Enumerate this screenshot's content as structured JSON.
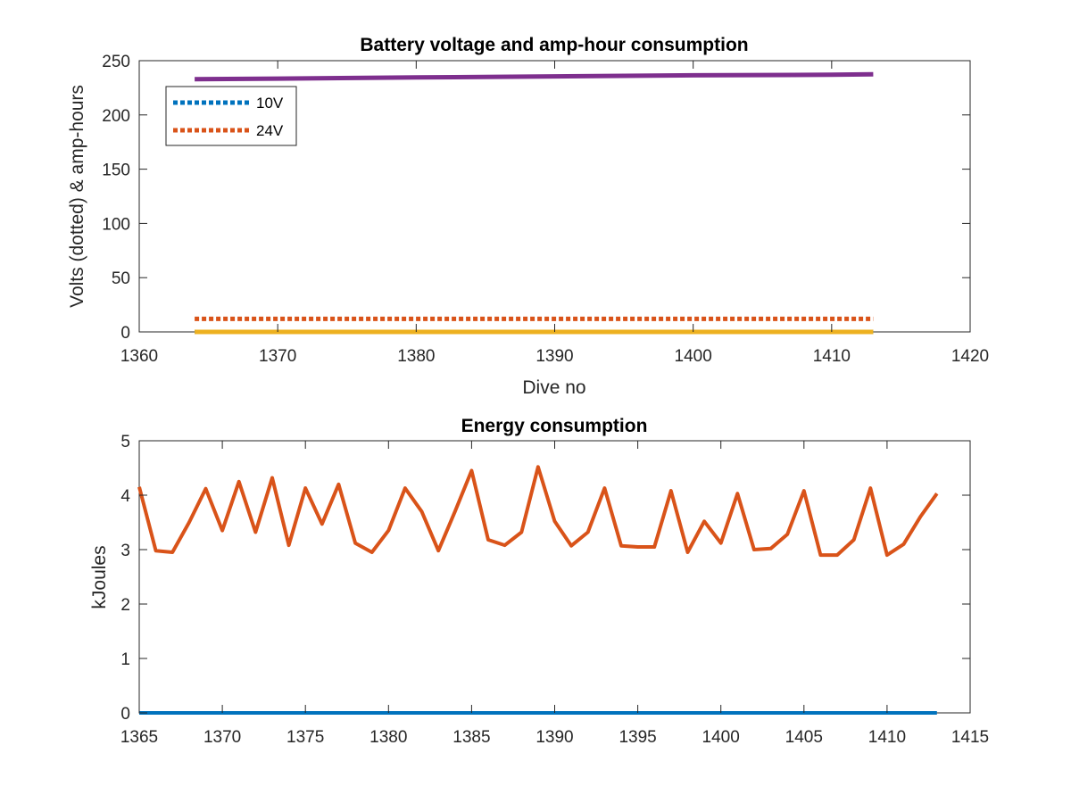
{
  "chart_data": [
    {
      "type": "line",
      "title": "Battery voltage and amp-hour consumption",
      "xlabel": "Dive no",
      "ylabel": "Volts (dotted) & amp-hours",
      "xlim": [
        1360,
        1420
      ],
      "ylim": [
        0,
        250
      ],
      "xticks": [
        1360,
        1370,
        1380,
        1390,
        1400,
        1410,
        1420
      ],
      "yticks": [
        0,
        50,
        100,
        150,
        200,
        250
      ],
      "legend": {
        "placement": "top-left",
        "entries": [
          "10V",
          "24V"
        ]
      },
      "grid": false,
      "series": [
        {
          "name": "10V",
          "style": "dotted",
          "color": "#0072BD",
          "x": [
            1364,
            1413
          ],
          "y": [
            0,
            0
          ]
        },
        {
          "name": "24V",
          "style": "dotted",
          "color": "#D95319",
          "x": [
            1364,
            1413
          ],
          "y": [
            12,
            12
          ]
        },
        {
          "name": "",
          "style": "solid",
          "color": "#EDB120",
          "x": [
            1364,
            1413
          ],
          "y": [
            0,
            0
          ]
        },
        {
          "name": "",
          "style": "solid",
          "color": "#7E2F8E",
          "x": [
            1364,
            1370,
            1380,
            1390,
            1400,
            1410,
            1413
          ],
          "y": [
            233,
            233.5,
            234.5,
            235.5,
            236.5,
            237,
            237.5
          ]
        }
      ]
    },
    {
      "type": "line",
      "title": "Energy consumption",
      "xlabel": "",
      "ylabel": "kJoules",
      "xlim": [
        1365,
        1415
      ],
      "ylim": [
        0,
        5
      ],
      "xticks": [
        1365,
        1370,
        1375,
        1380,
        1385,
        1390,
        1395,
        1400,
        1405,
        1410,
        1415
      ],
      "yticks": [
        0,
        1,
        2,
        3,
        4,
        5
      ],
      "grid": false,
      "series": [
        {
          "name": "",
          "color": "#D95319",
          "x": [
            1365,
            1366,
            1367,
            1368,
            1369,
            1370,
            1371,
            1372,
            1373,
            1374,
            1375,
            1376,
            1377,
            1378,
            1379,
            1380,
            1381,
            1382,
            1383,
            1384,
            1385,
            1386,
            1387,
            1388,
            1389,
            1390,
            1391,
            1392,
            1393,
            1394,
            1395,
            1396,
            1397,
            1398,
            1399,
            1400,
            1401,
            1402,
            1403,
            1404,
            1405,
            1406,
            1407,
            1408,
            1409,
            1410,
            1411,
            1412,
            1413
          ],
          "y": [
            4.15,
            2.98,
            2.95,
            3.5,
            4.12,
            3.35,
            4.25,
            3.32,
            4.32,
            3.08,
            4.13,
            3.47,
            4.2,
            3.12,
            2.95,
            3.35,
            4.13,
            3.7,
            2.98,
            3.7,
            4.45,
            3.18,
            3.08,
            3.32,
            4.52,
            3.52,
            3.07,
            3.32,
            4.13,
            3.07,
            3.05,
            3.05,
            4.08,
            2.95,
            3.52,
            3.12,
            4.03,
            3.0,
            3.02,
            3.28,
            4.08,
            2.9,
            2.9,
            3.18,
            4.13,
            2.9,
            3.1,
            3.6,
            4.03
          ]
        },
        {
          "name": "",
          "color": "#0072BD",
          "x": [
            1365,
            1413
          ],
          "y": [
            0,
            0
          ]
        }
      ]
    }
  ]
}
